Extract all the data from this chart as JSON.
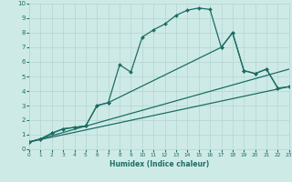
{
  "xlabel": "Humidex (Indice chaleur)",
  "bg_color": "#ceeae7",
  "grid_color": "#b8d8d4",
  "line_color": "#1a6e64",
  "xlim": [
    0,
    23
  ],
  "ylim": [
    0,
    10
  ],
  "xticks": [
    0,
    1,
    2,
    3,
    4,
    5,
    6,
    7,
    8,
    9,
    10,
    11,
    12,
    13,
    14,
    15,
    16,
    17,
    18,
    19,
    20,
    21,
    22,
    23
  ],
  "yticks": [
    0,
    1,
    2,
    3,
    4,
    5,
    6,
    7,
    8,
    9,
    10
  ],
  "line1_x": [
    0,
    1,
    2,
    3,
    4,
    5,
    6,
    7,
    8,
    9,
    10,
    11,
    12,
    13,
    14,
    15,
    16,
    17,
    18,
    19,
    20,
    21,
    22
  ],
  "line1_y": [
    0.5,
    0.7,
    1.1,
    1.4,
    1.5,
    1.6,
    3.0,
    3.2,
    5.8,
    5.3,
    7.7,
    8.2,
    8.6,
    9.2,
    9.55,
    9.7,
    9.6,
    7.0,
    8.0,
    5.4,
    5.2,
    5.5,
    4.2
  ],
  "line2_x": [
    0,
    1,
    2,
    3,
    4,
    5,
    6,
    7,
    17,
    18,
    19,
    20,
    21,
    22,
    23
  ],
  "line2_y": [
    0.5,
    0.7,
    1.1,
    1.4,
    1.5,
    1.6,
    3.0,
    3.2,
    7.0,
    8.0,
    5.4,
    5.2,
    5.5,
    4.2,
    4.3
  ],
  "line3_x": [
    0,
    23
  ],
  "line3_y": [
    0.5,
    5.5
  ],
  "line4_x": [
    0,
    23
  ],
  "line4_y": [
    0.5,
    4.3
  ]
}
